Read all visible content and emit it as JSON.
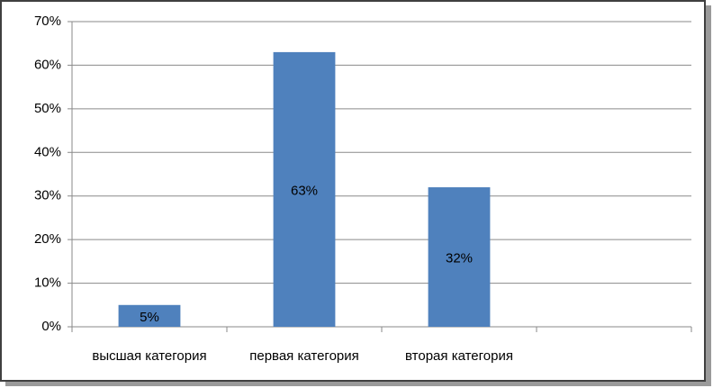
{
  "chart_data": {
    "type": "bar",
    "categories": [
      "высшая категория",
      "первая категория",
      "вторая категория",
      null
    ],
    "values": [
      5,
      63,
      32,
      null
    ],
    "value_labels": [
      "5%",
      "63%",
      "32%",
      null
    ],
    "color": "#4f81bd",
    "ylim": [
      0,
      70
    ],
    "yticks": [
      {
        "value": 0,
        "label": "0%"
      },
      {
        "value": 10,
        "label": "10%"
      },
      {
        "value": 20,
        "label": "20%"
      },
      {
        "value": 30,
        "label": "30%"
      },
      {
        "value": 40,
        "label": "40%"
      },
      {
        "value": 50,
        "label": "50%"
      },
      {
        "value": 60,
        "label": "60%"
      },
      {
        "value": 70,
        "label": "70%"
      }
    ],
    "grid": true
  }
}
